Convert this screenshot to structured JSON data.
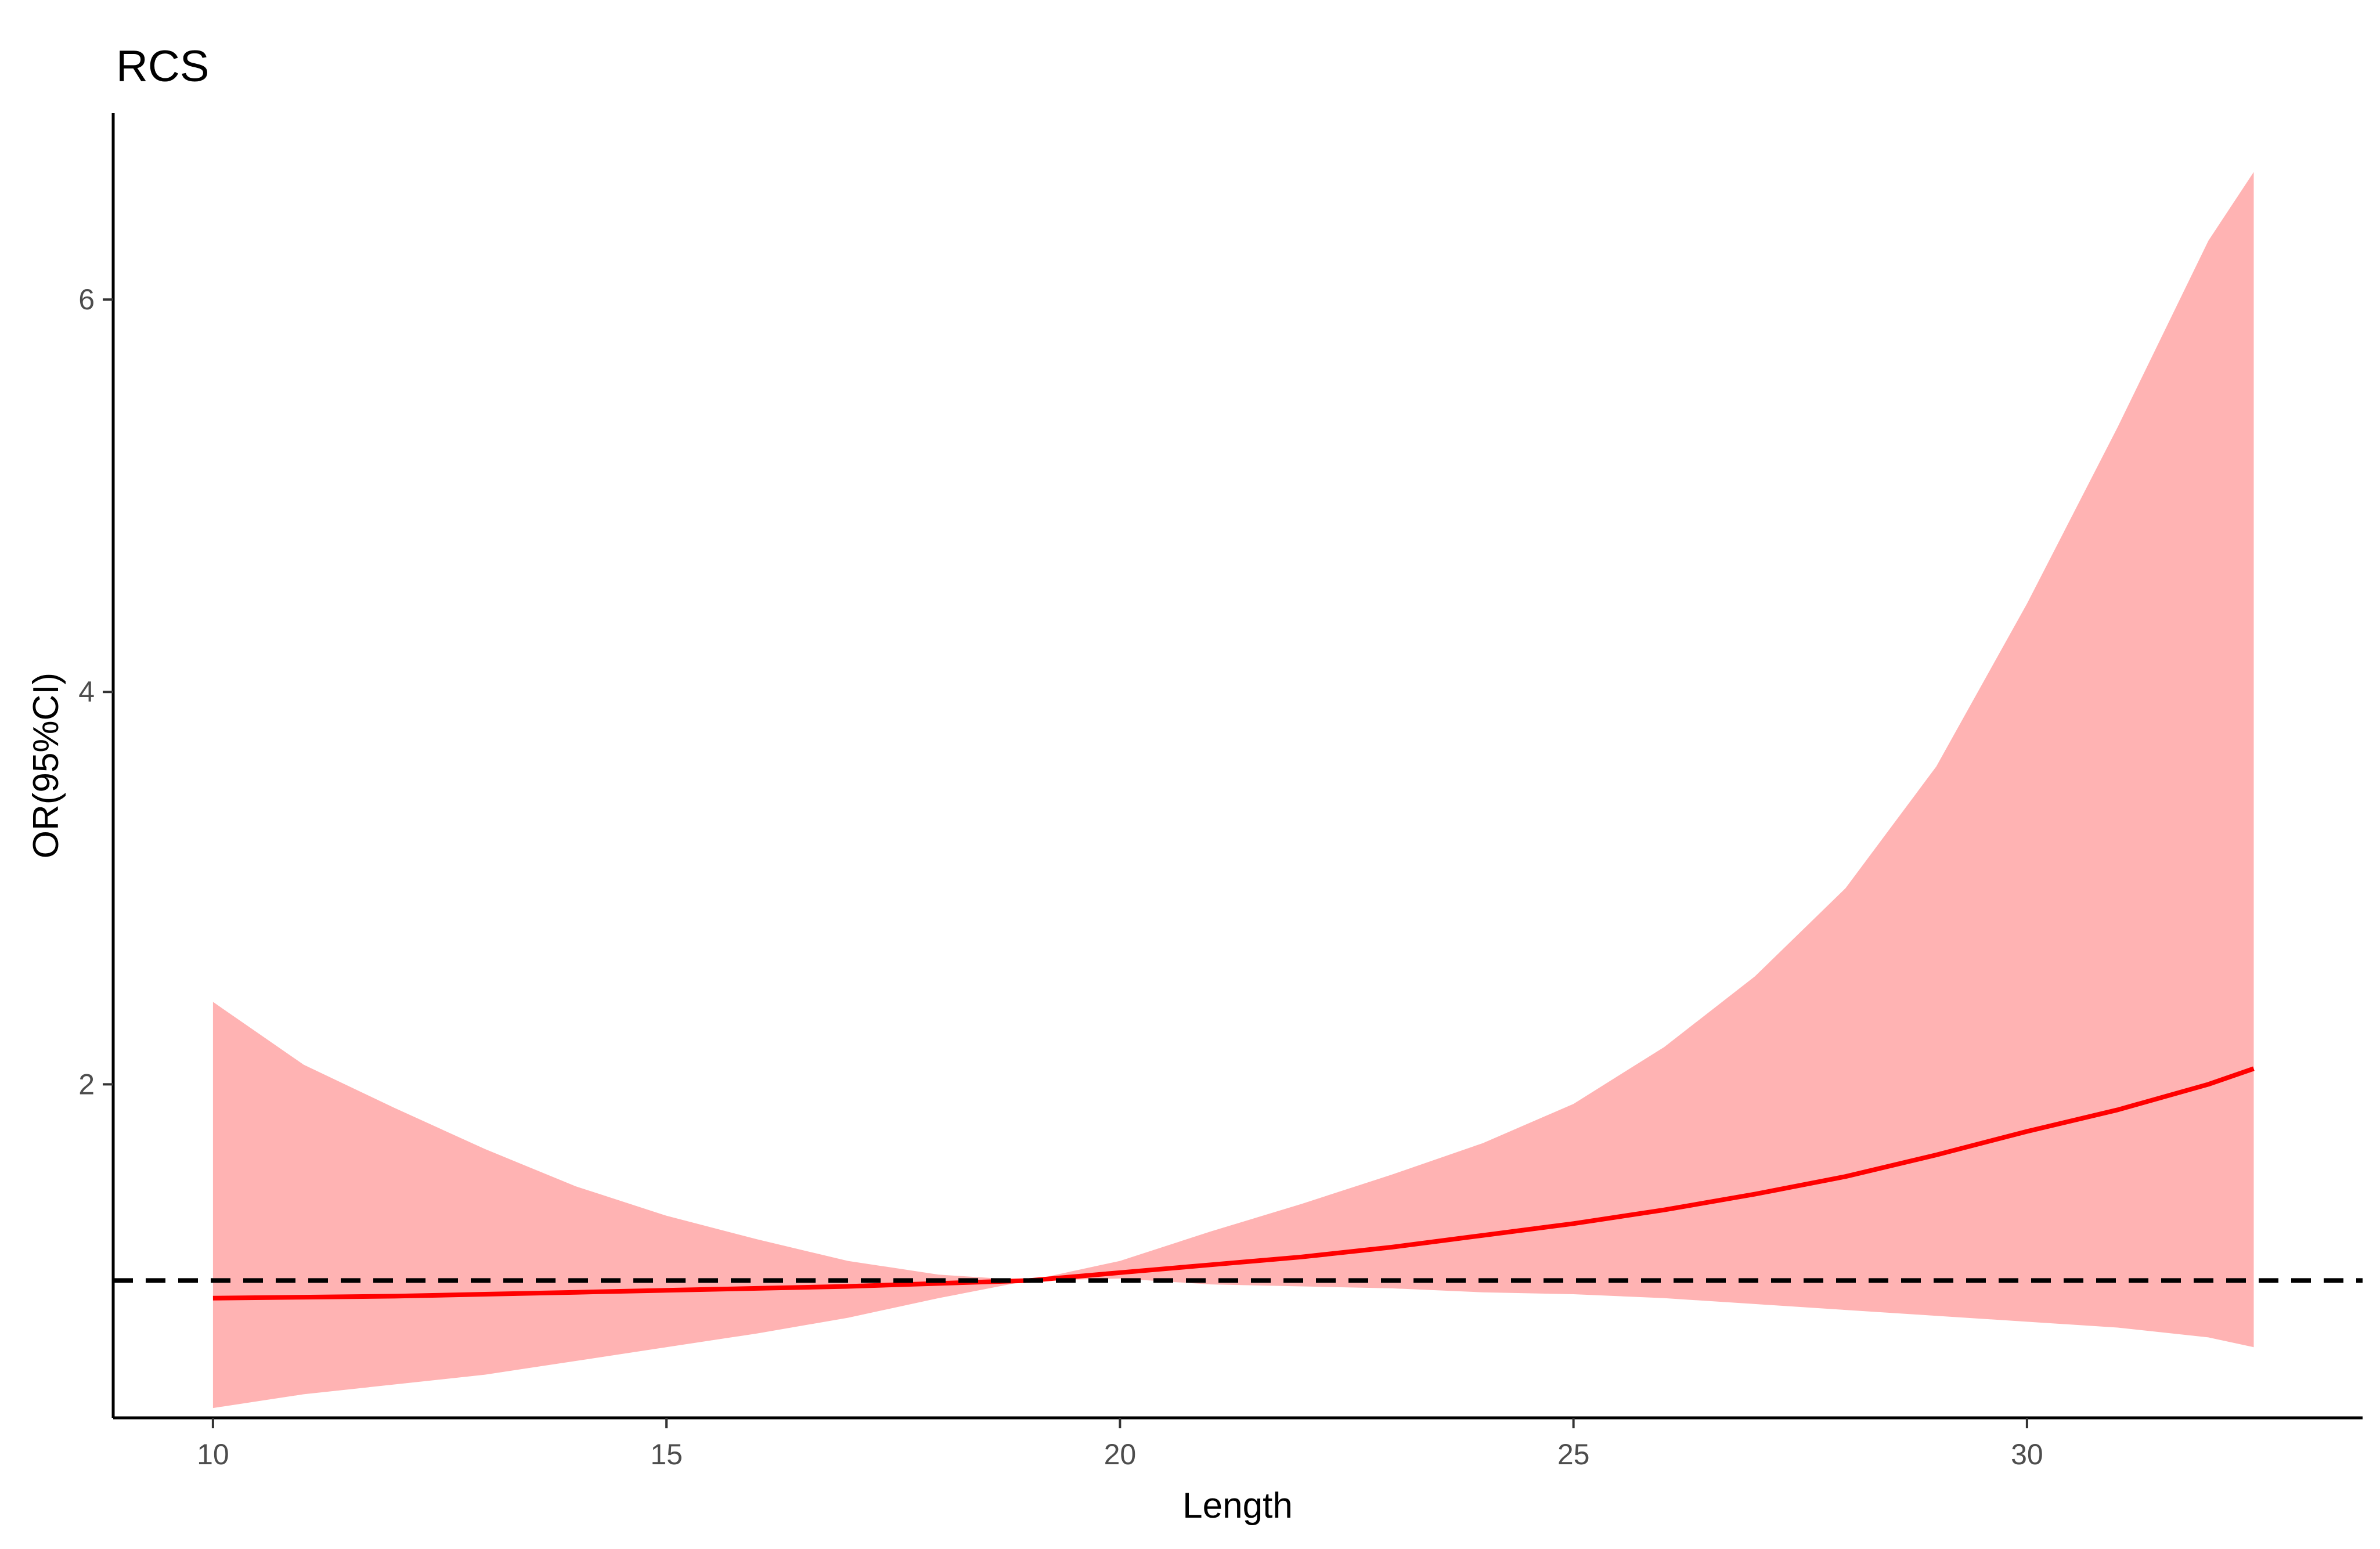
{
  "chart_data": {
    "type": "line",
    "title": "RCS",
    "xlabel": "Length",
    "ylabel": "OR(95%CI)",
    "xlim": [
      8.9,
      33.7
    ],
    "ylim": [
      0.3,
      6.95
    ],
    "x_ticks": [
      10,
      15,
      20,
      25,
      30
    ],
    "y_ticks": [
      2,
      4,
      6
    ],
    "grid": false,
    "reference_line": {
      "y": 1,
      "style": "dashed",
      "color": "#000000"
    },
    "series": [
      {
        "x": [
          10,
          11,
          12,
          13,
          14,
          15,
          16,
          17,
          18,
          19,
          20,
          21,
          22,
          23,
          24,
          25,
          26,
          27,
          28,
          29,
          30,
          31,
          32,
          32.5
        ],
        "y": [
          0.91,
          0.915,
          0.92,
          0.93,
          0.94,
          0.95,
          0.96,
          0.97,
          0.985,
          1.0,
          1.04,
          1.08,
          1.12,
          1.17,
          1.23,
          1.29,
          1.36,
          1.44,
          1.53,
          1.64,
          1.76,
          1.87,
          2.0,
          2.08
        ],
        "lower": [
          0.35,
          0.42,
          0.47,
          0.52,
          0.59,
          0.66,
          0.73,
          0.81,
          0.91,
          1.0,
          1.01,
          0.98,
          0.97,
          0.96,
          0.94,
          0.93,
          0.91,
          0.88,
          0.85,
          0.82,
          0.79,
          0.76,
          0.71,
          0.66
        ],
        "upper": [
          2.42,
          2.1,
          1.88,
          1.67,
          1.48,
          1.33,
          1.21,
          1.1,
          1.03,
          1.0,
          1.1,
          1.25,
          1.39,
          1.54,
          1.7,
          1.9,
          2.19,
          2.55,
          3.0,
          3.62,
          4.45,
          5.35,
          6.3,
          6.65
        ],
        "line_color": "#ff0000",
        "band_color": "#ffb3b3"
      }
    ]
  }
}
